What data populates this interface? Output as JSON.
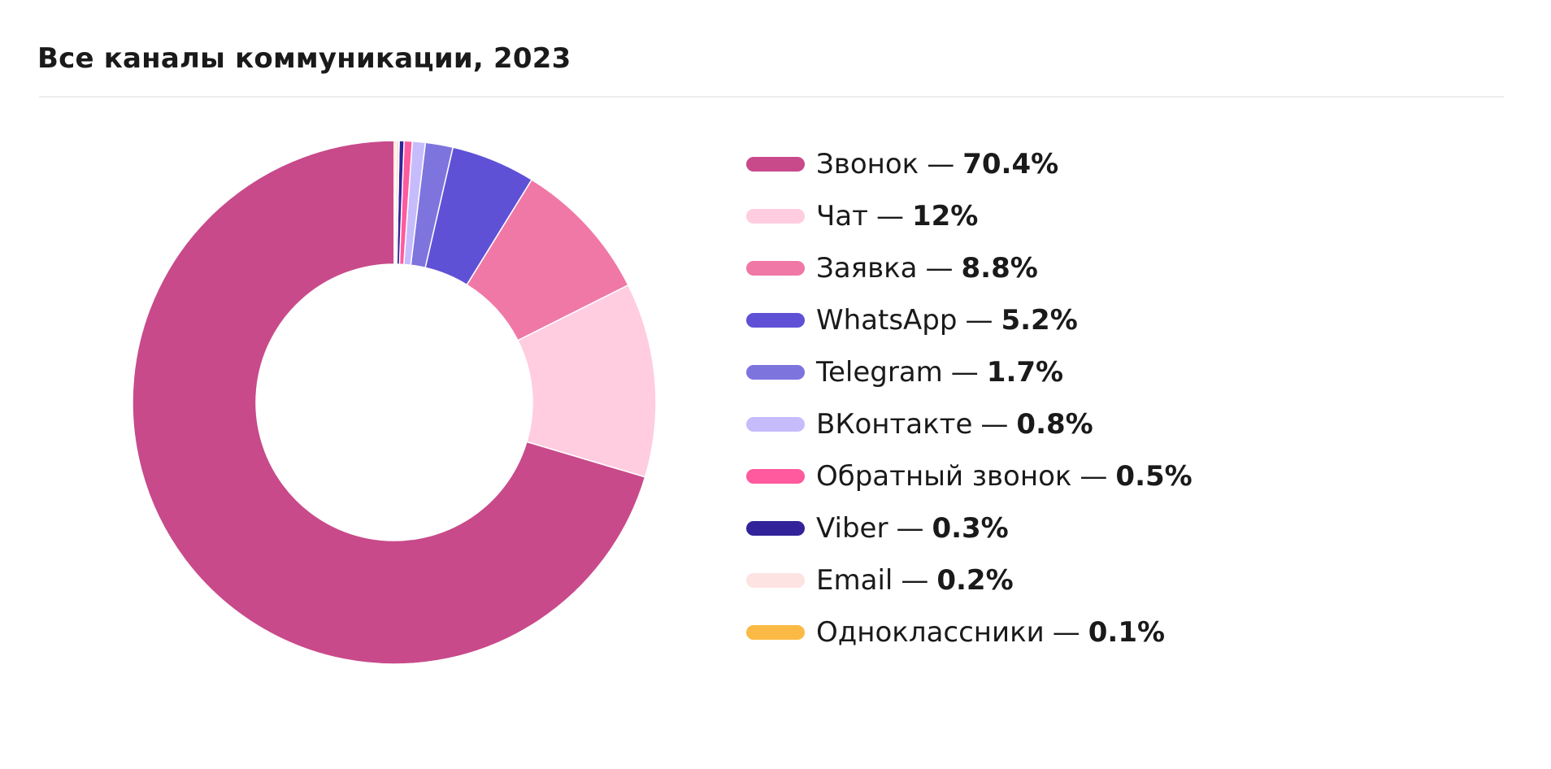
{
  "header": {
    "title": "Все каналы коммуникации, 2023"
  },
  "legend_separator": "—",
  "chart_data": {
    "type": "pie",
    "donut": true,
    "title": "Все каналы коммуникации, 2023",
    "legend_position": "right",
    "slices": [
      {
        "label": "Звонок",
        "value": 70.4,
        "value_label": "70.4%",
        "color": "#C84A8A"
      },
      {
        "label": "Чат",
        "value": 12,
        "value_label": "12%",
        "color": "#FFCCE0"
      },
      {
        "label": "Заявка",
        "value": 8.8,
        "value_label": "8.8%",
        "color": "#F078A6"
      },
      {
        "label": "WhatsApp",
        "value": 5.2,
        "value_label": "5.2%",
        "color": "#5F51D6"
      },
      {
        "label": "Telegram",
        "value": 1.7,
        "value_label": "1.7%",
        "color": "#7E74DE"
      },
      {
        "label": "ВКонтакте",
        "value": 0.8,
        "value_label": "0.8%",
        "color": "#C6BCFC"
      },
      {
        "label": "Обратный звонок",
        "value": 0.5,
        "value_label": "0.5%",
        "color": "#FF5A9E"
      },
      {
        "label": "Viber",
        "value": 0.3,
        "value_label": "0.3%",
        "color": "#33239A"
      },
      {
        "label": "Email",
        "value": 0.2,
        "value_label": "0.2%",
        "color": "#FDE3E1"
      },
      {
        "label": "Одноклассники",
        "value": 0.1,
        "value_label": "0.1%",
        "color": "#FBBA45"
      }
    ]
  }
}
